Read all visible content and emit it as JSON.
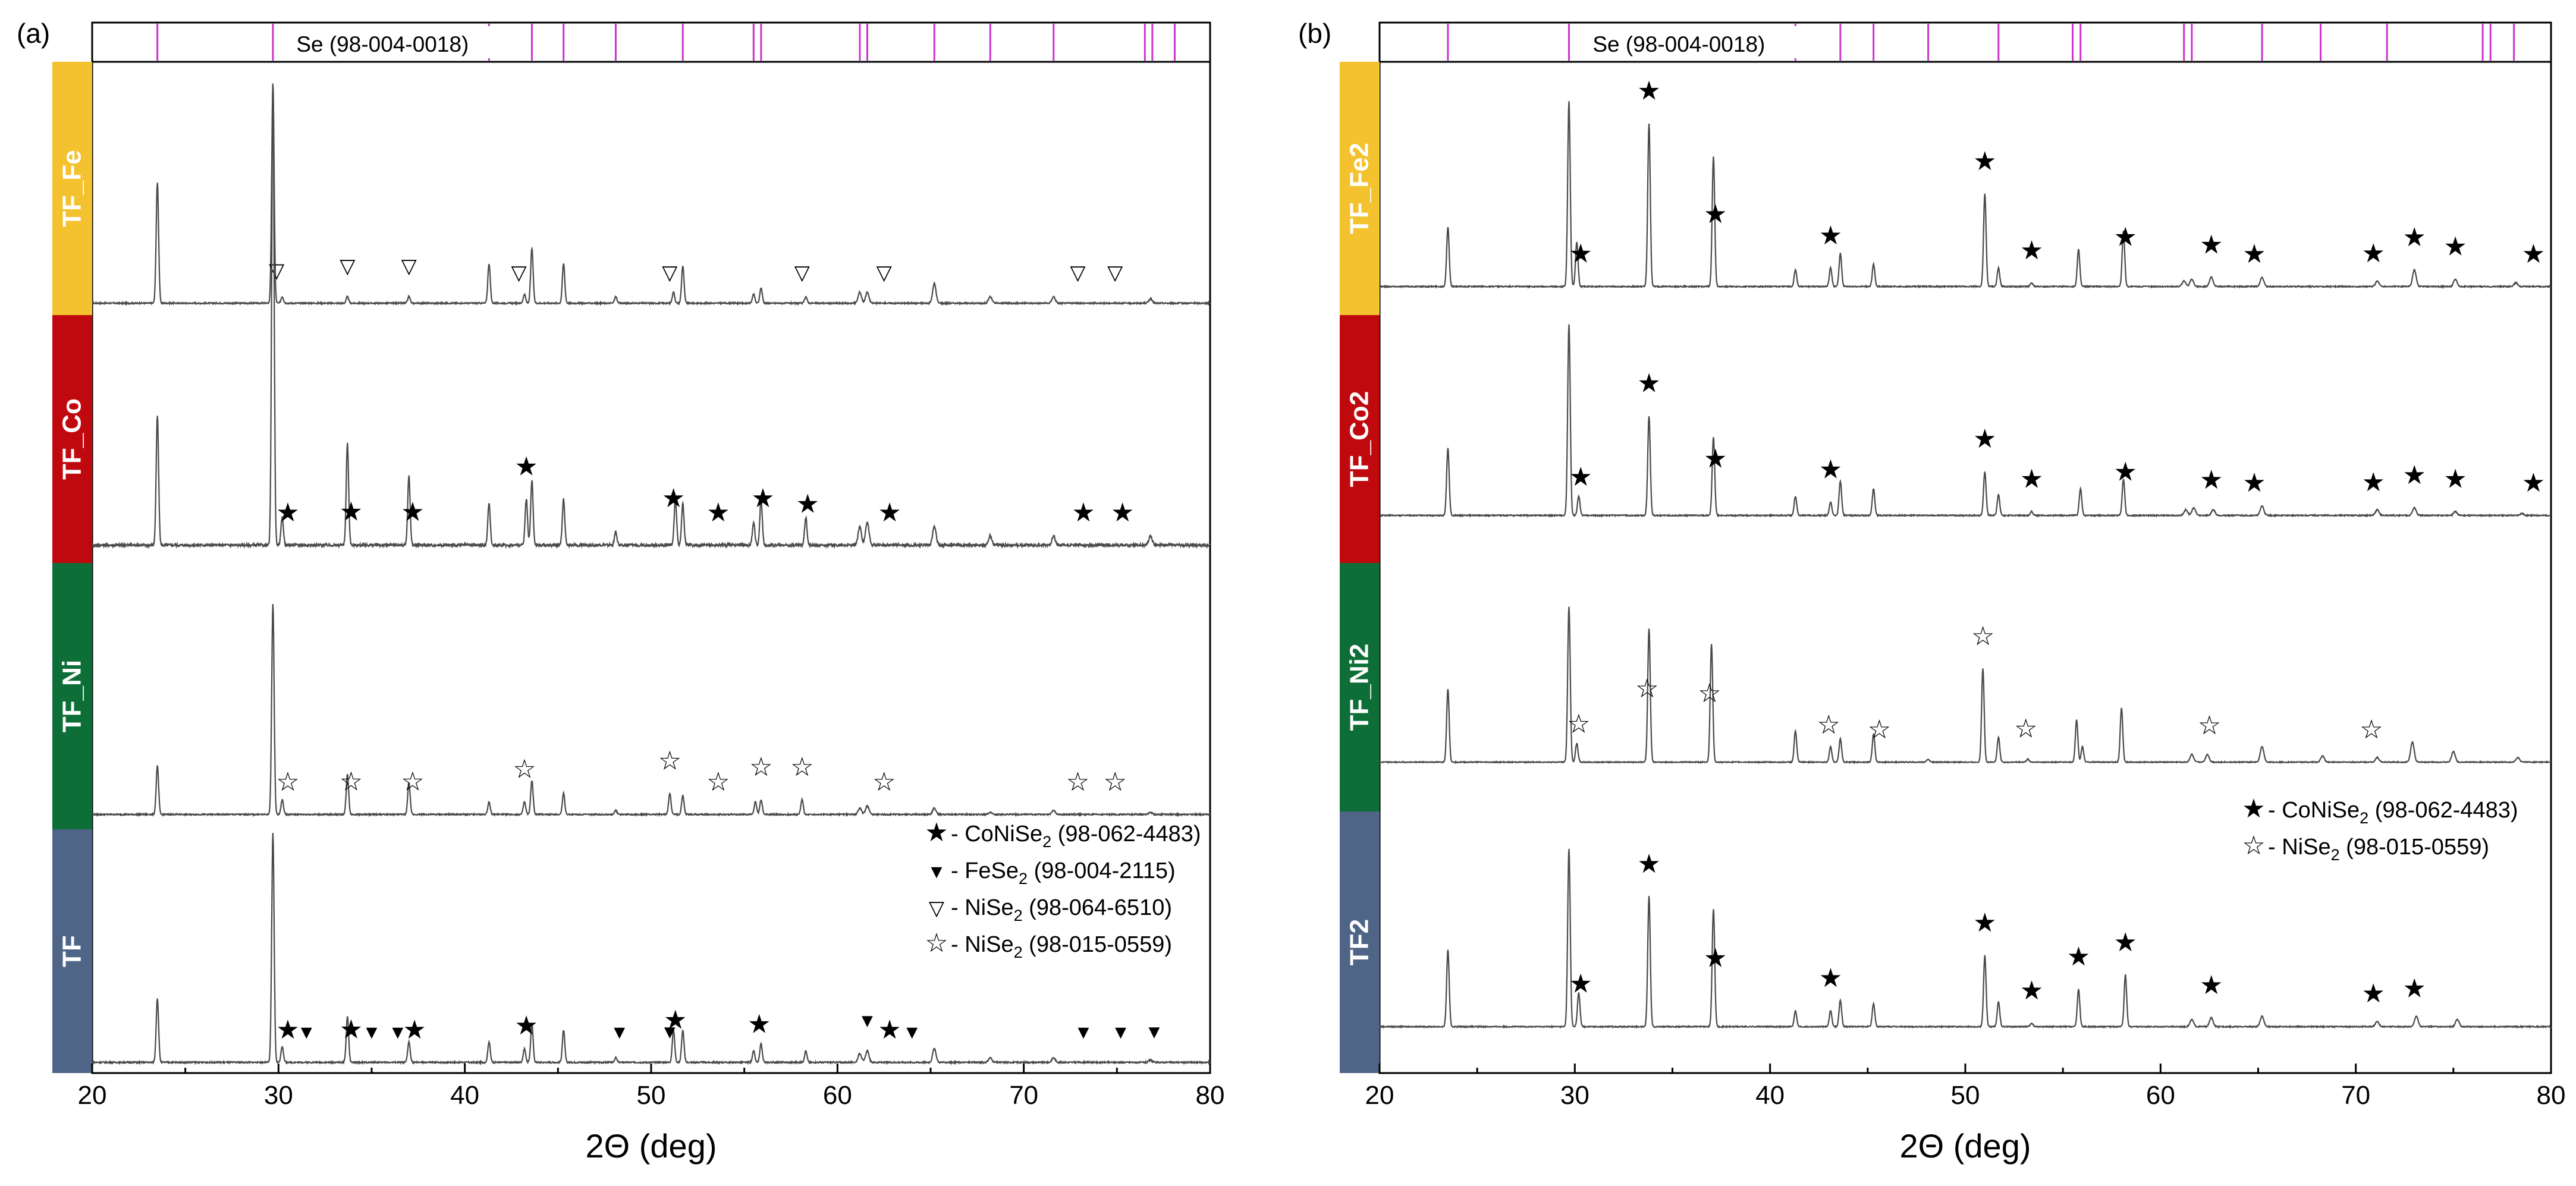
{
  "chart_data": [
    {
      "type": "line",
      "panel_label": "(a)",
      "xlabel": "2Θ (deg)",
      "xlim": [
        20,
        80
      ],
      "x_ticks": [
        20,
        30,
        40,
        50,
        60,
        70,
        80
      ],
      "y_axis_visible": false,
      "reference": {
        "label": "Se (98-004-0018)",
        "positions": [
          23.5,
          29.7,
          41.3,
          43.6,
          45.3,
          48.1,
          51.7,
          55.5,
          55.9,
          61.2,
          61.6,
          65.2,
          68.2,
          71.6,
          76.5,
          76.9,
          78.1
        ],
        "color": "#cc33cc"
      },
      "series": [
        {
          "name": "TF_Fe",
          "color": "#f3c22e",
          "peaks": [
            [
              23.5,
              0.55
            ],
            [
              29.7,
              1.0
            ],
            [
              30.2,
              0.03
            ],
            [
              33.7,
              0.03
            ],
            [
              37.0,
              0.03
            ],
            [
              41.3,
              0.18
            ],
            [
              43.2,
              0.04
            ],
            [
              43.6,
              0.25
            ],
            [
              45.3,
              0.18
            ],
            [
              48.1,
              0.03
            ],
            [
              51.2,
              0.05
            ],
            [
              51.7,
              0.17
            ],
            [
              55.5,
              0.04
            ],
            [
              55.9,
              0.07
            ],
            [
              58.3,
              0.03
            ],
            [
              61.2,
              0.05
            ],
            [
              61.6,
              0.05
            ],
            [
              65.2,
              0.09
            ],
            [
              68.2,
              0.03
            ],
            [
              71.6,
              0.03
            ],
            [
              76.8,
              0.02
            ]
          ],
          "markers": {
            "NiSe2 (98-064-6510)": [
              29.9,
              33.7,
              37.0,
              42.9,
              51.0,
              58.1,
              62.5,
              72.9,
              74.9
            ]
          }
        },
        {
          "name": "TF_Co",
          "color": "#c0080f",
          "peaks": [
            [
              23.5,
              0.28
            ],
            [
              29.7,
              1.0
            ],
            [
              30.2,
              0.06
            ],
            [
              33.7,
              0.22
            ],
            [
              37.0,
              0.15
            ],
            [
              41.3,
              0.09
            ],
            [
              43.3,
              0.1
            ],
            [
              43.6,
              0.14
            ],
            [
              45.3,
              0.1
            ],
            [
              48.1,
              0.03
            ],
            [
              51.3,
              0.1
            ],
            [
              51.7,
              0.09
            ],
            [
              55.5,
              0.05
            ],
            [
              55.9,
              0.1
            ],
            [
              58.3,
              0.06
            ],
            [
              61.2,
              0.04
            ],
            [
              61.6,
              0.05
            ],
            [
              65.2,
              0.04
            ],
            [
              68.2,
              0.02
            ],
            [
              71.6,
              0.02
            ],
            [
              76.8,
              0.02
            ]
          ],
          "markers": {
            "CoNiSe2 (98-062-4483)": [
              30.5,
              33.9,
              37.2,
              43.3,
              51.2,
              53.6,
              56.0,
              58.4,
              62.8,
              73.2,
              75.3
            ]
          }
        },
        {
          "name": "TF_Ni",
          "color": "#0d6e37",
          "peaks": [
            [
              23.5,
              0.23
            ],
            [
              29.7,
              1.0
            ],
            [
              30.2,
              0.07
            ],
            [
              33.7,
              0.19
            ],
            [
              37.0,
              0.15
            ],
            [
              41.3,
              0.06
            ],
            [
              43.2,
              0.06
            ],
            [
              43.6,
              0.16
            ],
            [
              45.3,
              0.1
            ],
            [
              48.1,
              0.02
            ],
            [
              51.0,
              0.1
            ],
            [
              51.7,
              0.09
            ],
            [
              55.6,
              0.06
            ],
            [
              55.9,
              0.07
            ],
            [
              58.1,
              0.07
            ],
            [
              61.2,
              0.03
            ],
            [
              61.6,
              0.04
            ],
            [
              65.2,
              0.03
            ],
            [
              68.2,
              0.01
            ],
            [
              71.6,
              0.02
            ],
            [
              76.8,
              0.01
            ]
          ],
          "markers": {
            "NiSe2 (98-015-0559)": [
              30.5,
              33.9,
              37.2,
              43.2,
              51.0,
              53.6,
              55.9,
              58.1,
              62.5,
              72.9,
              74.9
            ]
          }
        },
        {
          "name": "TF",
          "color": "#4e6587",
          "peaks": [
            [
              23.5,
              0.28
            ],
            [
              29.7,
              1.0
            ],
            [
              30.2,
              0.07
            ],
            [
              33.7,
              0.2
            ],
            [
              37.0,
              0.09
            ],
            [
              41.3,
              0.09
            ],
            [
              43.2,
              0.06
            ],
            [
              43.6,
              0.17
            ],
            [
              45.3,
              0.14
            ],
            [
              48.1,
              0.02
            ],
            [
              51.2,
              0.14
            ],
            [
              51.7,
              0.14
            ],
            [
              55.5,
              0.05
            ],
            [
              55.9,
              0.08
            ],
            [
              58.3,
              0.05
            ],
            [
              61.2,
              0.04
            ],
            [
              61.6,
              0.05
            ],
            [
              65.2,
              0.06
            ],
            [
              68.2,
              0.02
            ],
            [
              71.6,
              0.02
            ],
            [
              76.8,
              0.01
            ]
          ],
          "markers": {
            "CoNiSe2 (98-062-4483)": [
              30.5,
              33.9,
              37.3,
              43.3,
              51.3,
              55.8,
              62.8
            ],
            "FeSe2 (98-004-2115)": [
              31.5,
              35.0,
              36.4,
              48.3,
              51.0,
              61.6,
              64.0,
              73.2,
              75.2,
              77.0
            ]
          }
        }
      ],
      "legend": {
        "placement": "bottom-right",
        "entries": [
          {
            "marker": "★",
            "prefix": " - CoNiSe",
            "sub": "2",
            "suffix": " (98-062-4483)"
          },
          {
            "marker": "▼",
            "prefix": " - FeSe",
            "sub": "2",
            "suffix": " (98-004-2115)"
          },
          {
            "marker": "▽",
            "prefix": " - NiSe",
            "sub": "2",
            "suffix": " (98-064-6510)"
          },
          {
            "marker": "☆",
            "prefix": " - NiSe",
            "sub": "2",
            "suffix": " (98-015-0559)"
          }
        ]
      }
    },
    {
      "type": "line",
      "panel_label": "(b)",
      "xlabel": "2Θ (deg)",
      "xlim": [
        20,
        80
      ],
      "x_ticks": [
        20,
        30,
        40,
        50,
        60,
        70,
        80
      ],
      "y_axis_visible": false,
      "reference": {
        "label": "Se (98-004-0018)",
        "positions": [
          23.5,
          29.7,
          41.3,
          43.6,
          45.3,
          48.1,
          51.7,
          55.5,
          55.9,
          61.2,
          61.6,
          65.2,
          68.2,
          71.6,
          76.5,
          76.9,
          78.1
        ],
        "color": "#cc33cc"
      },
      "series": [
        {
          "name": "TF_Fe2",
          "color": "#f3c22e",
          "peaks": [
            [
              23.5,
              0.32
            ],
            [
              29.7,
              1.0
            ],
            [
              30.1,
              0.24
            ],
            [
              33.8,
              0.88
            ],
            [
              37.1,
              0.7
            ],
            [
              41.3,
              0.09
            ],
            [
              43.1,
              0.1
            ],
            [
              43.6,
              0.18
            ],
            [
              45.3,
              0.12
            ],
            [
              51.0,
              0.5
            ],
            [
              51.7,
              0.1
            ],
            [
              53.4,
              0.02
            ],
            [
              55.8,
              0.2
            ],
            [
              58.1,
              0.3
            ],
            [
              61.2,
              0.03
            ],
            [
              61.6,
              0.04
            ],
            [
              62.6,
              0.05
            ],
            [
              65.2,
              0.05
            ],
            [
              71.1,
              0.03
            ],
            [
              73.0,
              0.09
            ],
            [
              75.1,
              0.04
            ],
            [
              78.2,
              0.02
            ]
          ],
          "markers": {
            "CoNiSe2 (98-062-4483)": [
              30.3,
              33.8,
              37.2,
              43.1,
              51.0,
              53.4,
              58.2,
              62.6,
              64.8,
              70.9,
              73.0,
              75.1,
              79.1
            ]
          }
        },
        {
          "name": "TF_Co2",
          "color": "#c0080f",
          "peaks": [
            [
              23.5,
              0.35
            ],
            [
              29.7,
              1.0
            ],
            [
              30.2,
              0.1
            ],
            [
              33.8,
              0.52
            ],
            [
              37.1,
              0.41
            ],
            [
              41.3,
              0.1
            ],
            [
              43.1,
              0.07
            ],
            [
              43.6,
              0.18
            ],
            [
              45.3,
              0.14
            ],
            [
              51.0,
              0.23
            ],
            [
              51.7,
              0.11
            ],
            [
              53.4,
              0.02
            ],
            [
              55.9,
              0.14
            ],
            [
              58.1,
              0.19
            ],
            [
              61.3,
              0.03
            ],
            [
              61.7,
              0.04
            ],
            [
              62.7,
              0.03
            ],
            [
              65.2,
              0.05
            ],
            [
              71.1,
              0.03
            ],
            [
              73.0,
              0.04
            ],
            [
              75.1,
              0.02
            ],
            [
              78.5,
              0.01
            ]
          ],
          "markers": {
            "CoNiSe2 (98-062-4483)": [
              30.3,
              33.8,
              37.2,
              43.1,
              51.0,
              53.4,
              58.2,
              62.6,
              64.8,
              70.9,
              73.0,
              75.1,
              79.1
            ]
          }
        },
        {
          "name": "TF_Ni2",
          "color": "#0d6e37",
          "peaks": [
            [
              23.5,
              0.47
            ],
            [
              29.7,
              1.0
            ],
            [
              30.1,
              0.12
            ],
            [
              33.8,
              0.86
            ],
            [
              37.0,
              0.76
            ],
            [
              41.3,
              0.2
            ],
            [
              43.1,
              0.1
            ],
            [
              43.6,
              0.15
            ],
            [
              45.3,
              0.18
            ],
            [
              48.1,
              0.02
            ],
            [
              50.9,
              0.6
            ],
            [
              51.7,
              0.16
            ],
            [
              53.2,
              0.02
            ],
            [
              55.7,
              0.27
            ],
            [
              56.0,
              0.1
            ],
            [
              58.0,
              0.35
            ],
            [
              61.6,
              0.05
            ],
            [
              62.4,
              0.05
            ],
            [
              65.2,
              0.1
            ],
            [
              68.3,
              0.04
            ],
            [
              71.1,
              0.03
            ],
            [
              72.9,
              0.13
            ],
            [
              75.0,
              0.07
            ],
            [
              78.3,
              0.03
            ]
          ],
          "markers": {
            "NiSe2 (98-015-0559)": [
              30.2,
              33.7,
              36.9,
              43.0,
              45.6,
              50.9,
              53.1,
              62.5,
              70.8
            ]
          }
        },
        {
          "name": "TF2",
          "color": "#4e6587",
          "peaks": [
            [
              23.5,
              0.43
            ],
            [
              29.7,
              1.0
            ],
            [
              30.2,
              0.19
            ],
            [
              33.8,
              0.73
            ],
            [
              37.1,
              0.66
            ],
            [
              41.3,
              0.09
            ],
            [
              43.1,
              0.09
            ],
            [
              43.6,
              0.15
            ],
            [
              45.3,
              0.13
            ],
            [
              51.0,
              0.4
            ],
            [
              51.7,
              0.14
            ],
            [
              53.4,
              0.02
            ],
            [
              55.8,
              0.21
            ],
            [
              58.2,
              0.29
            ],
            [
              61.6,
              0.04
            ],
            [
              62.6,
              0.05
            ],
            [
              65.2,
              0.06
            ],
            [
              71.1,
              0.03
            ],
            [
              73.1,
              0.06
            ],
            [
              75.2,
              0.04
            ]
          ],
          "markers": {
            "CoNiSe2 (98-062-4483)": [
              30.3,
              33.8,
              37.2,
              43.1,
              51.0,
              53.4,
              55.8,
              58.2,
              62.6,
              70.9,
              73.0
            ]
          }
        }
      ],
      "legend": {
        "placement": "right, between TF_Ni2 and TF2",
        "entries": [
          {
            "marker": "★",
            "prefix": " - CoNiSe",
            "sub": "2",
            "suffix": " (98-062-4483)"
          },
          {
            "marker": "☆",
            "prefix": " - NiSe",
            "sub": "2",
            "suffix": " (98-015-0559)"
          }
        ]
      }
    }
  ]
}
